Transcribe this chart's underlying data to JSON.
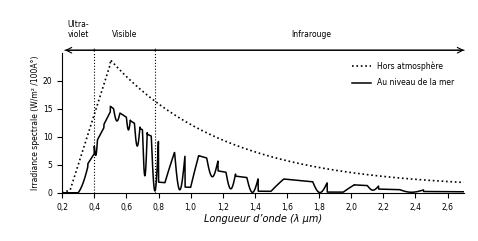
{
  "xlim": [
    0.2,
    2.7
  ],
  "ylim": [
    0,
    25
  ],
  "xlabel": "Longueur d’onde (λ μm)",
  "ylabel": "Irradiance spectrale (W/m² /100A°)",
  "legend_hors": "Hors atmosphère",
  "legend_mer": "Au niveau de la mer",
  "uv_label": "Ultra-\nviolet",
  "vis_label": "Visible",
  "ir_label": "Infrarouge",
  "uv_boundary": 0.4,
  "vis_boundary": 0.78,
  "yticks": [
    0,
    5,
    10,
    15,
    20
  ],
  "xticks": [
    0.2,
    0.4,
    0.6,
    0.8,
    1.0,
    1.2,
    1.4,
    1.6,
    1.8,
    2.0,
    2.2,
    2.4,
    2.6
  ],
  "xtick_labels": [
    "0,2",
    "0,4",
    "0,6",
    "0,8",
    "1,0",
    "1,2",
    "1,4",
    "1,6",
    "1,8",
    "2,0",
    "2,2",
    "2,4",
    "2,6"
  ],
  "ytick_labels": [
    "0",
    "5",
    "10",
    "15",
    "20"
  ]
}
